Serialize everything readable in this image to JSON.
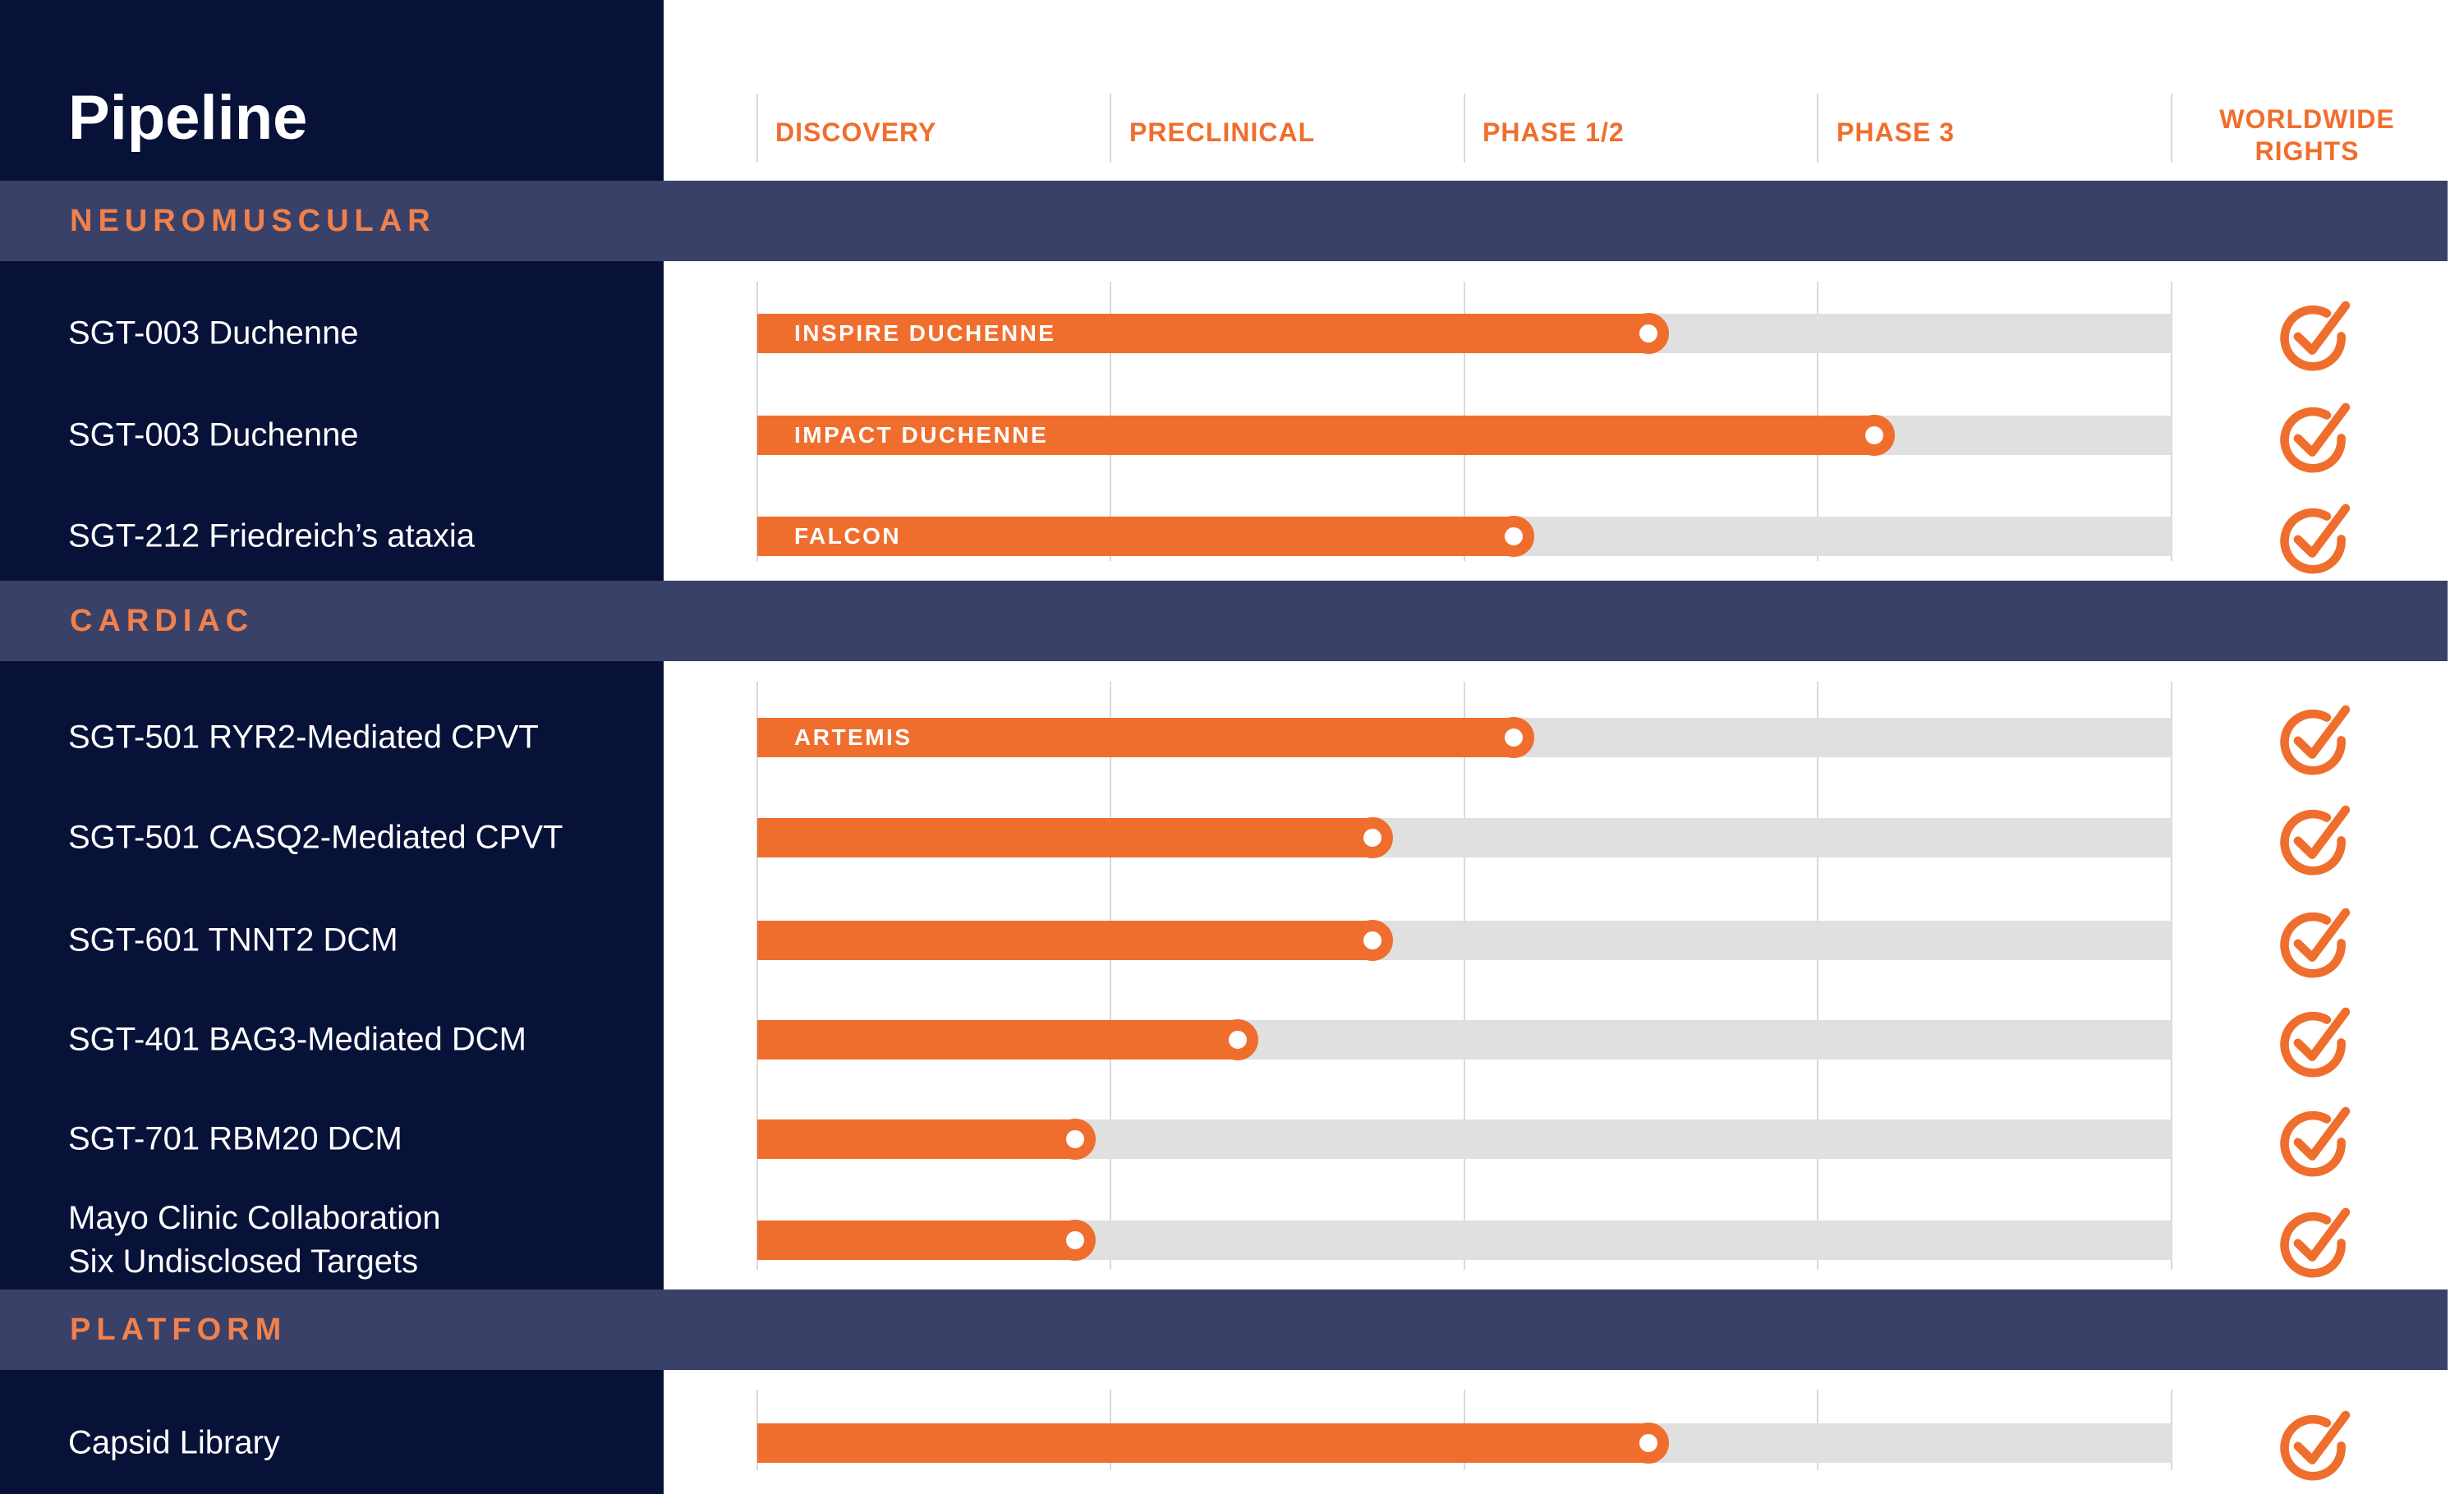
{
  "colors": {
    "navy": "#081138",
    "band": "#3A4169",
    "orange": "#F06E2D",
    "orange_light": "#F0814C",
    "track": "#E0E0E0",
    "divider": "#D9D9D9"
  },
  "chart_data": {
    "type": "bar",
    "title": "Pipeline",
    "columns": [
      "DISCOVERY",
      "PRECLINICAL",
      "PHASE 1/2",
      "PHASE 3"
    ],
    "rights_header": {
      "line1": "WORLDWIDE",
      "line2": "RIGHTS"
    },
    "column_span_pct": 25,
    "xlim": [
      0,
      100
    ],
    "grid": "vertical dividers at 0/25/50/75/100 pct",
    "sections": [
      {
        "name": "NEUROMUSCULAR",
        "rows": [
          {
            "program": "SGT-003 Duchenne",
            "program_line2": "",
            "trial": "INSPIRE DUCHENNE",
            "progress_pct": 63,
            "worldwide_rights": true
          },
          {
            "program": "SGT-003 Duchenne",
            "program_line2": "",
            "trial": "IMPACT DUCHENNE",
            "progress_pct": 79,
            "worldwide_rights": true
          },
          {
            "program": "SGT-212 Friedreich’s ataxia",
            "program_line2": "",
            "trial": "FALCON",
            "progress_pct": 53.5,
            "worldwide_rights": true
          }
        ]
      },
      {
        "name": "CARDIAC",
        "rows": [
          {
            "program": "SGT-501 RYR2-Mediated CPVT",
            "program_line2": "",
            "trial": "ARTEMIS",
            "progress_pct": 53.5,
            "worldwide_rights": true
          },
          {
            "program": "SGT-501 CASQ2-Mediated CPVT",
            "program_line2": "",
            "trial": "",
            "progress_pct": 43.5,
            "worldwide_rights": true
          },
          {
            "program": "SGT-601 TNNT2 DCM",
            "program_line2": "",
            "trial": "",
            "progress_pct": 43.5,
            "worldwide_rights": true
          },
          {
            "program": "SGT-401 BAG3-Mediated DCM",
            "program_line2": "",
            "trial": "",
            "progress_pct": 34,
            "worldwide_rights": true
          },
          {
            "program": "SGT-701 RBM20 DCM",
            "program_line2": "",
            "trial": "",
            "progress_pct": 22.5,
            "worldwide_rights": true
          },
          {
            "program": "Mayo Clinic Collaboration",
            "program_line2": "Six Undisclosed Targets",
            "trial": "",
            "progress_pct": 22.5,
            "worldwide_rights": true
          }
        ]
      },
      {
        "name": "PLATFORM",
        "rows": [
          {
            "program": "Capsid Library",
            "program_line2": "",
            "trial": "",
            "progress_pct": 63,
            "worldwide_rights": true
          }
        ]
      }
    ]
  }
}
